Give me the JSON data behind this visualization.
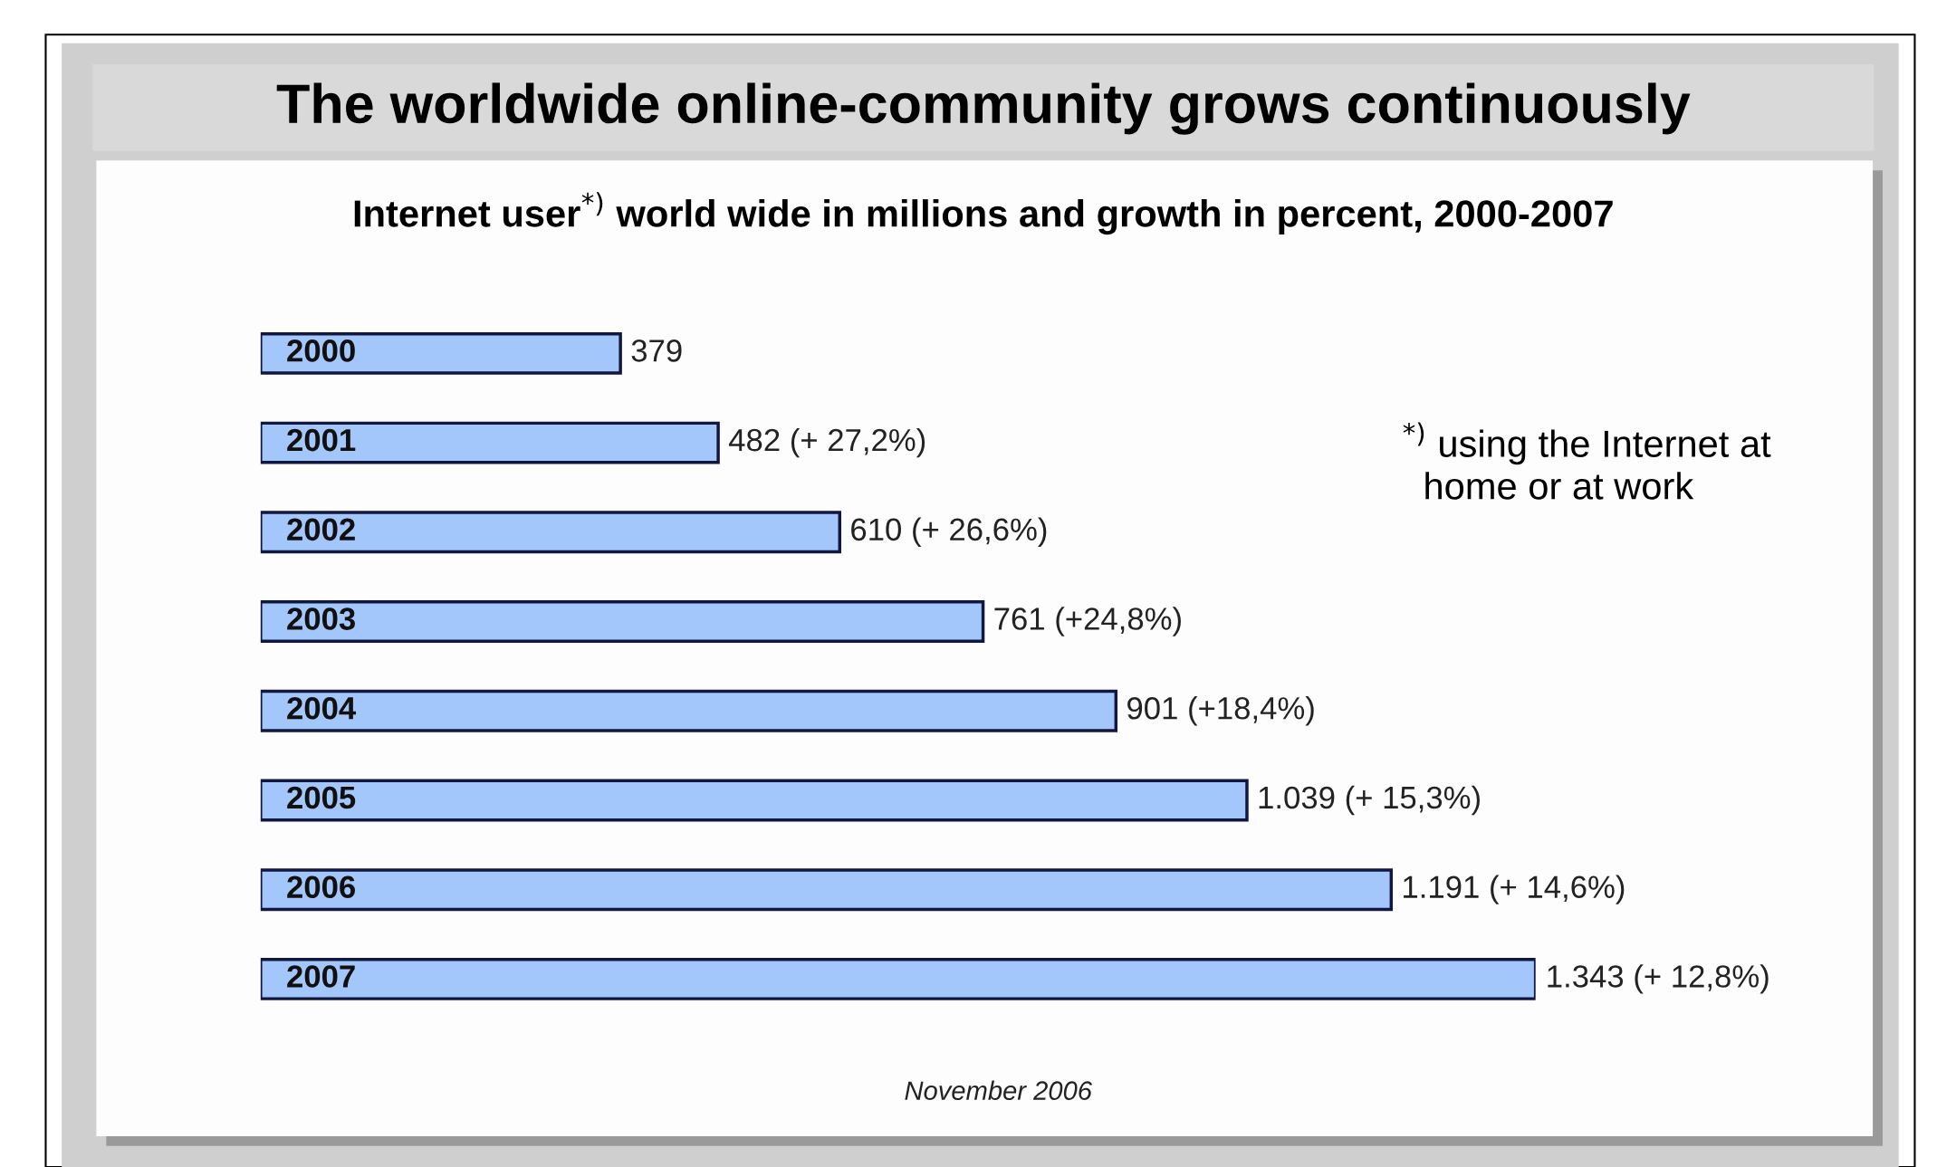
{
  "chart_data": {
    "type": "bar",
    "orientation": "horizontal",
    "title": "The worldwide online-community grows continuously",
    "subtitle": "Internet user$^{*)}$ world wide in millions and growth in percent, 2000-2007",
    "categories": [
      "2000",
      "2001",
      "2002",
      "2003",
      "2004",
      "2005",
      "2006",
      "2007"
    ],
    "values": [
      379,
      482,
      610,
      761,
      901,
      1039,
      1191,
      1343
    ],
    "value_labels": [
      "379",
      "482 (+ 27,2%)",
      "610 (+ 26,6%)",
      "761 (+24,8%)",
      "901 (+18,4%)",
      "1.039 (+ 15,3%)",
      "1.191 (+ 14,6%)",
      "1.343 (+ 12,8%)"
    ],
    "color": "#a3c6fb",
    "annotations": [
      "$^{*)}$ using the Internet at\n  home or at work",
      "November 2006"
    ],
    "legend": false
  }
}
